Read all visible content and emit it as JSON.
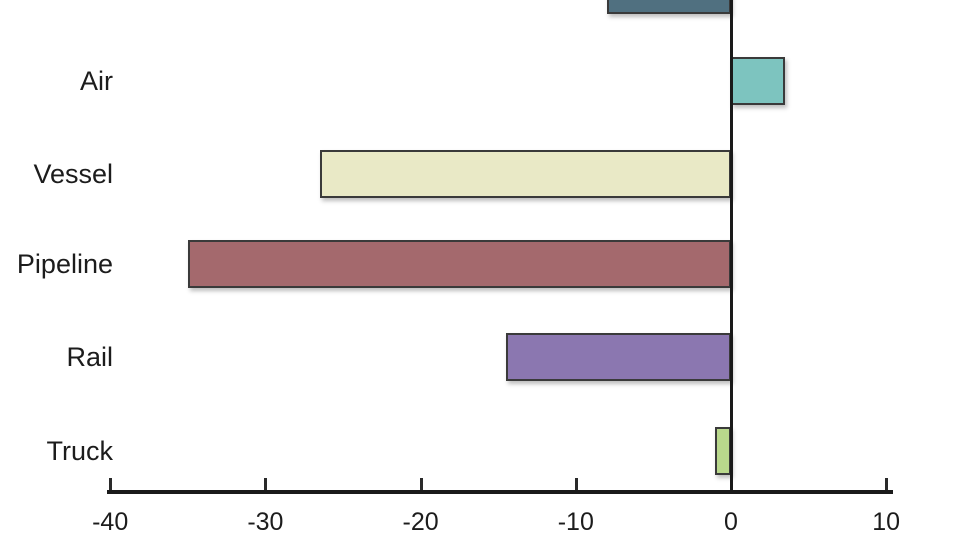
{
  "chart_data": {
    "type": "bar",
    "orientation": "horizontal",
    "title": "",
    "xlabel": "",
    "ylabel": "",
    "grid": false,
    "legend": false,
    "categories": [
      "",
      "Air",
      "Vessel",
      "Pipeline",
      "Rail",
      "Truck"
    ],
    "values": [
      -8,
      3.5,
      -26.5,
      -35,
      -14.5,
      -1
    ],
    "bar_colors": [
      "#507080",
      "#7dc4bf",
      "#e9e9c6",
      "#a4696d",
      "#8b77b0",
      "#b9d88c"
    ],
    "bar_border_color": "#3a3a3a",
    "xlim": [
      -42,
      11
    ],
    "x_ticks": [
      -40,
      -30,
      -20,
      -10,
      0,
      10
    ],
    "x_tick_labels": [
      "-40",
      "-30",
      "-20",
      "-10",
      "0",
      "10"
    ],
    "axis_color": "#1a1a1a",
    "text_color": "#1c1c1c",
    "note_first_bar": "topmost bar is clipped by the top edge of the image and its label is not visible"
  }
}
